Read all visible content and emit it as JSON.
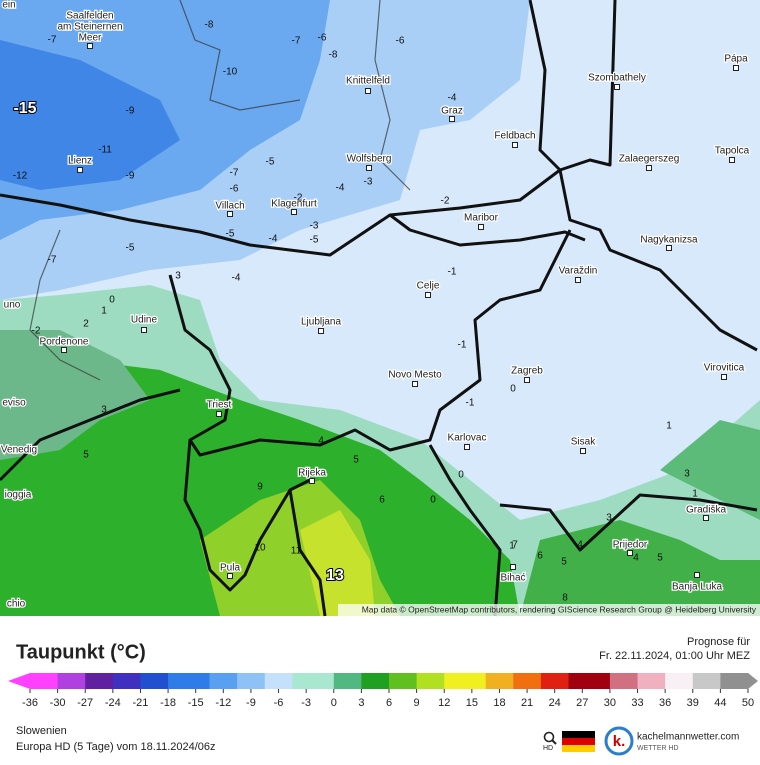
{
  "map": {
    "cities": [
      [
        "Saalfelden",
        "am Steinernen",
        "Meer"
      ],
      "Knittelfeld",
      "Graz",
      "Szombathely",
      "Pápa",
      "Feldbach",
      "Lienz",
      "Wolfsberg",
      "Zalaegerszeg",
      "Tapolca",
      "Villach",
      "Klagenfurt",
      "Maribor",
      "Nagykanizsa",
      "Varaždin",
      "Celje",
      "Udine",
      "Ljubljana",
      "Pordenone",
      "Novo Mesto",
      "Zagreb",
      "Virovitica",
      "Triest",
      "Karlovac",
      "Sisak",
      "Rijeka",
      "Gradiška",
      "Prijedor",
      "Pula",
      "Bihać",
      "Banja Luka",
      "ein",
      "uno",
      "eviso",
      "Venedig",
      "ioggia",
      "chio"
    ],
    "contour_labels": [
      -8,
      -7,
      -6,
      -6,
      -8,
      -7,
      -10,
      -15,
      -9,
      -4,
      -11,
      -9,
      -12,
      -5,
      -7,
      -6,
      -3,
      -4,
      -2,
      -2,
      -5,
      -4,
      -3,
      -5,
      -5,
      -7,
      3,
      -4,
      -1,
      0,
      1,
      2,
      -2,
      -1,
      -1,
      0,
      3,
      5,
      4,
      5,
      9,
      6,
      0,
      0,
      1,
      3,
      1,
      3,
      10,
      11,
      13,
      7,
      6,
      5,
      4,
      4,
      5,
      8,
      1
    ],
    "attribution": "Map data © OpenStreetMap contributors, rendering GIScience Research Group @ Heidelberg University"
  },
  "legend": {
    "title": "Taupunkt (°C)",
    "ticks": [
      -36,
      -30,
      -27,
      -24,
      -21,
      -18,
      -15,
      -12,
      -9,
      -6,
      -3,
      0,
      3,
      6,
      9,
      12,
      15,
      18,
      21,
      24,
      27,
      30,
      33,
      36,
      39,
      44,
      50
    ]
  },
  "header": {
    "forecast_label": "Prognose für",
    "forecast_time": "Fr. 22.11.2024, 01:00 Uhr MEZ"
  },
  "footer": {
    "region": "Slowenien",
    "model": "Europa HD (5 Tage) vom  18.11.2024/06z",
    "hd": "HD",
    "brand": "kachelmannwetter.com",
    "brand_sub": "WETTER HD"
  }
}
